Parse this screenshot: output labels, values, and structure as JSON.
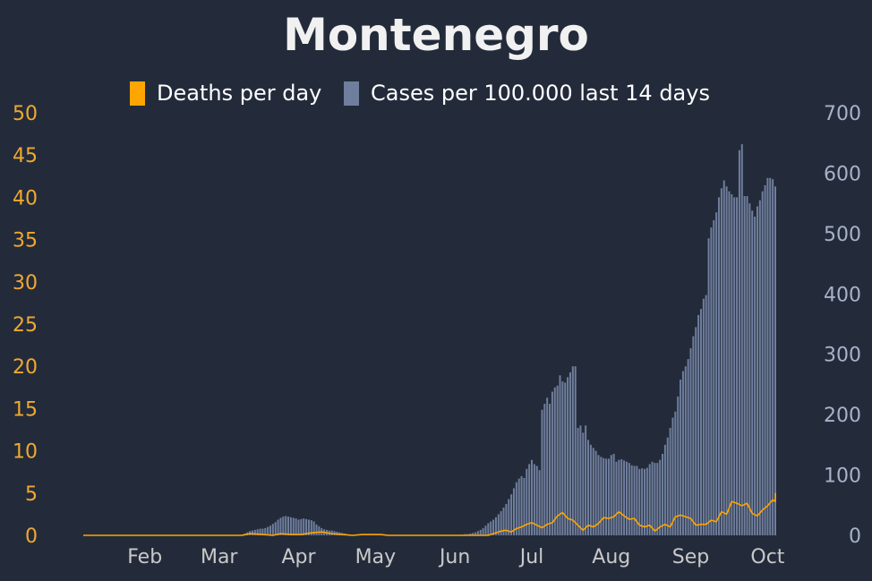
{
  "chart_data": {
    "type": "bar",
    "title": "Montenegro",
    "legend": {
      "placement": "top-center",
      "items": [
        {
          "label": "Deaths per day",
          "color": "#ffa500"
        },
        {
          "label": "Cases per 100.000 last 14 days",
          "color": "#6f7e9c"
        }
      ]
    },
    "x_ticks": [
      "Feb",
      "Mar",
      "Apr",
      "May",
      "Jun",
      "Jul",
      "Aug",
      "Sep",
      "Oct"
    ],
    "x_range": [
      "2020-01-22",
      "2020-10-18"
    ],
    "y_left": {
      "range": [
        0,
        50
      ],
      "ticks": [
        "0",
        "5",
        "10",
        "15",
        "20",
        "25",
        "30",
        "35",
        "40",
        "45",
        "50"
      ],
      "color": "#f0a830"
    },
    "y_right": {
      "range": [
        0,
        700
      ],
      "ticks": [
        "0",
        "100",
        "200",
        "300",
        "400",
        "500",
        "600",
        "700"
      ],
      "color": "#a7b2c7"
    },
    "grid": false,
    "series": [
      {
        "name": "Cases per 100.000 last 14 days",
        "axis": "right",
        "kind": "bar",
        "color": "#6f7e9c",
        "points": [
          [
            "2020-03-24",
            1
          ],
          [
            "2020-03-25",
            3
          ],
          [
            "2020-03-26",
            5
          ],
          [
            "2020-03-27",
            7
          ],
          [
            "2020-03-28",
            8
          ],
          [
            "2020-03-29",
            9
          ],
          [
            "2020-03-30",
            10
          ],
          [
            "2020-03-31",
            11
          ],
          [
            "2020-04-01",
            11
          ],
          [
            "2020-04-02",
            12
          ],
          [
            "2020-04-03",
            14
          ],
          [
            "2020-04-04",
            16
          ],
          [
            "2020-04-05",
            19
          ],
          [
            "2020-04-06",
            22
          ],
          [
            "2020-04-07",
            26
          ],
          [
            "2020-04-08",
            29
          ],
          [
            "2020-04-09",
            31
          ],
          [
            "2020-04-10",
            32
          ],
          [
            "2020-04-11",
            31
          ],
          [
            "2020-04-12",
            30
          ],
          [
            "2020-04-13",
            29
          ],
          [
            "2020-04-14",
            28
          ],
          [
            "2020-04-15",
            26
          ],
          [
            "2020-04-16",
            27
          ],
          [
            "2020-04-17",
            28
          ],
          [
            "2020-04-18",
            27
          ],
          [
            "2020-04-19",
            26
          ],
          [
            "2020-04-20",
            25
          ],
          [
            "2020-04-21",
            23
          ],
          [
            "2020-04-22",
            18
          ],
          [
            "2020-04-23",
            15
          ],
          [
            "2020-04-24",
            12
          ],
          [
            "2020-04-25",
            10
          ],
          [
            "2020-04-26",
            9
          ],
          [
            "2020-04-27",
            8
          ],
          [
            "2020-04-28",
            8
          ],
          [
            "2020-04-29",
            7
          ],
          [
            "2020-04-30",
            6
          ],
          [
            "2020-05-01",
            5
          ],
          [
            "2020-05-02",
            4
          ],
          [
            "2020-05-03",
            3
          ],
          [
            "2020-05-04",
            2
          ],
          [
            "2020-05-05",
            1
          ],
          [
            "2020-05-06",
            1
          ],
          [
            "2020-05-07",
            0.5
          ],
          [
            "2020-06-17",
            1
          ],
          [
            "2020-06-18",
            1
          ],
          [
            "2020-06-19",
            2
          ],
          [
            "2020-06-20",
            2
          ],
          [
            "2020-06-21",
            3
          ],
          [
            "2020-06-22",
            4
          ],
          [
            "2020-06-23",
            5
          ],
          [
            "2020-06-24",
            7
          ],
          [
            "2020-06-25",
            9
          ],
          [
            "2020-06-26",
            12
          ],
          [
            "2020-06-27",
            16
          ],
          [
            "2020-06-28",
            20
          ],
          [
            "2020-06-29",
            23
          ],
          [
            "2020-06-30",
            26
          ],
          [
            "2020-07-01",
            30
          ],
          [
            "2020-07-02",
            35
          ],
          [
            "2020-07-03",
            40
          ],
          [
            "2020-07-04",
            46
          ],
          [
            "2020-07-05",
            52
          ],
          [
            "2020-07-06",
            60
          ],
          [
            "2020-07-07",
            68
          ],
          [
            "2020-07-08",
            78
          ],
          [
            "2020-07-09",
            88
          ],
          [
            "2020-07-10",
            94
          ],
          [
            "2020-07-11",
            98
          ],
          [
            "2020-07-12",
            95
          ],
          [
            "2020-07-13",
            110
          ],
          [
            "2020-07-14",
            118
          ],
          [
            "2020-07-15",
            125
          ],
          [
            "2020-07-16",
            118
          ],
          [
            "2020-07-17",
            115
          ],
          [
            "2020-07-18",
            108
          ],
          [
            "2020-07-19",
            208
          ],
          [
            "2020-07-20",
            218
          ],
          [
            "2020-07-21",
            228
          ],
          [
            "2020-07-22",
            218
          ],
          [
            "2020-07-23",
            238
          ],
          [
            "2020-07-24",
            245
          ],
          [
            "2020-07-25",
            248
          ],
          [
            "2020-07-26",
            265
          ],
          [
            "2020-07-27",
            255
          ],
          [
            "2020-07-28",
            253
          ],
          [
            "2020-07-29",
            262
          ],
          [
            "2020-07-30",
            270
          ],
          [
            "2020-07-31",
            280
          ],
          [
            "2020-08-01",
            280
          ],
          [
            "2020-08-02",
            178
          ],
          [
            "2020-08-03",
            182
          ],
          [
            "2020-08-04",
            170
          ],
          [
            "2020-08-05",
            182
          ],
          [
            "2020-08-06",
            158
          ],
          [
            "2020-08-07",
            150
          ],
          [
            "2020-08-08",
            145
          ],
          [
            "2020-08-09",
            140
          ],
          [
            "2020-08-10",
            133
          ],
          [
            "2020-08-11",
            130
          ],
          [
            "2020-08-12",
            128
          ],
          [
            "2020-08-13",
            127
          ],
          [
            "2020-08-14",
            127
          ],
          [
            "2020-08-15",
            133
          ],
          [
            "2020-08-16",
            135
          ],
          [
            "2020-08-17",
            122
          ],
          [
            "2020-08-18",
            125
          ],
          [
            "2020-08-19",
            126
          ],
          [
            "2020-08-20",
            124
          ],
          [
            "2020-08-21",
            122
          ],
          [
            "2020-08-22",
            120
          ],
          [
            "2020-08-23",
            116
          ],
          [
            "2020-08-24",
            115
          ],
          [
            "2020-08-25",
            115
          ],
          [
            "2020-08-26",
            110
          ],
          [
            "2020-08-27",
            111
          ],
          [
            "2020-08-28",
            110
          ],
          [
            "2020-08-29",
            112
          ],
          [
            "2020-08-30",
            118
          ],
          [
            "2020-08-31",
            122
          ],
          [
            "2020-09-01",
            120
          ],
          [
            "2020-09-02",
            120
          ],
          [
            "2020-09-03",
            125
          ],
          [
            "2020-09-04",
            135
          ],
          [
            "2020-09-05",
            150
          ],
          [
            "2020-09-06",
            162
          ],
          [
            "2020-09-07",
            178
          ],
          [
            "2020-09-08",
            195
          ],
          [
            "2020-09-09",
            205
          ],
          [
            "2020-09-10",
            230
          ],
          [
            "2020-09-11",
            258
          ],
          [
            "2020-09-12",
            272
          ],
          [
            "2020-09-13",
            280
          ],
          [
            "2020-09-14",
            292
          ],
          [
            "2020-09-15",
            310
          ],
          [
            "2020-09-16",
            330
          ],
          [
            "2020-09-17",
            345
          ],
          [
            "2020-09-18",
            365
          ],
          [
            "2020-09-19",
            375
          ],
          [
            "2020-09-20",
            392
          ],
          [
            "2020-09-21",
            398
          ],
          [
            "2020-09-22",
            492
          ],
          [
            "2020-09-23",
            510
          ],
          [
            "2020-09-24",
            522
          ],
          [
            "2020-09-25",
            535
          ],
          [
            "2020-09-26",
            560
          ],
          [
            "2020-09-27",
            575
          ],
          [
            "2020-09-28",
            588
          ],
          [
            "2020-09-29",
            578
          ],
          [
            "2020-09-30",
            570
          ],
          [
            "2020-10-01",
            565
          ],
          [
            "2020-10-02",
            560
          ],
          [
            "2020-10-03",
            560
          ],
          [
            "2020-10-04",
            638
          ],
          [
            "2020-10-05",
            648
          ],
          [
            "2020-10-06",
            562
          ],
          [
            "2020-10-07",
            562
          ],
          [
            "2020-10-08",
            550
          ],
          [
            "2020-10-09",
            538
          ],
          [
            "2020-10-10",
            528
          ],
          [
            "2020-10-11",
            545
          ],
          [
            "2020-10-12",
            555
          ],
          [
            "2020-10-13",
            570
          ],
          [
            "2020-10-14",
            580
          ],
          [
            "2020-10-15",
            592
          ],
          [
            "2020-10-16",
            592
          ],
          [
            "2020-10-17",
            590
          ],
          [
            "2020-10-18",
            578
          ]
        ]
      },
      {
        "name": "Deaths per day",
        "axis": "left",
        "kind": "line",
        "color": "#ffa500",
        "points": [
          [
            "2020-01-22",
            0
          ],
          [
            "2020-03-24",
            0
          ],
          [
            "2020-03-27",
            0.2
          ],
          [
            "2020-04-01",
            0.1
          ],
          [
            "2020-04-05",
            0
          ],
          [
            "2020-04-08",
            0.2
          ],
          [
            "2020-04-12",
            0.1
          ],
          [
            "2020-04-16",
            0.1
          ],
          [
            "2020-04-20",
            0.3
          ],
          [
            "2020-04-24",
            0.4
          ],
          [
            "2020-04-28",
            0.2
          ],
          [
            "2020-05-02",
            0.1
          ],
          [
            "2020-05-06",
            0
          ],
          [
            "2020-05-10",
            0.1
          ],
          [
            "2020-05-17",
            0.1
          ],
          [
            "2020-05-20",
            0
          ],
          [
            "2020-06-20",
            0
          ],
          [
            "2020-06-28",
            0
          ],
          [
            "2020-07-01",
            0.3
          ],
          [
            "2020-07-03",
            0.5
          ],
          [
            "2020-07-05",
            0.6
          ],
          [
            "2020-07-07",
            0.4
          ],
          [
            "2020-07-09",
            0.8
          ],
          [
            "2020-07-11",
            1.0
          ],
          [
            "2020-07-13",
            1.3
          ],
          [
            "2020-07-15",
            1.5
          ],
          [
            "2020-07-17",
            1.2
          ],
          [
            "2020-07-19",
            0.9
          ],
          [
            "2020-07-21",
            1.3
          ],
          [
            "2020-07-23",
            1.5
          ],
          [
            "2020-07-25",
            2.3
          ],
          [
            "2020-07-27",
            2.7
          ],
          [
            "2020-07-29",
            2.0
          ],
          [
            "2020-07-31",
            1.8
          ],
          [
            "2020-08-02",
            1.2
          ],
          [
            "2020-08-04",
            0.6
          ],
          [
            "2020-08-06",
            1.2
          ],
          [
            "2020-08-08",
            1.0
          ],
          [
            "2020-08-10",
            1.4
          ],
          [
            "2020-08-12",
            2.1
          ],
          [
            "2020-08-14",
            2.0
          ],
          [
            "2020-08-16",
            2.2
          ],
          [
            "2020-08-18",
            2.8
          ],
          [
            "2020-08-20",
            2.3
          ],
          [
            "2020-08-22",
            1.9
          ],
          [
            "2020-08-24",
            2.0
          ],
          [
            "2020-08-26",
            1.2
          ],
          [
            "2020-08-28",
            1.0
          ],
          [
            "2020-08-30",
            1.2
          ],
          [
            "2020-09-01",
            0.5
          ],
          [
            "2020-09-03",
            1.0
          ],
          [
            "2020-09-05",
            1.3
          ],
          [
            "2020-09-07",
            1.0
          ],
          [
            "2020-09-09",
            2.2
          ],
          [
            "2020-09-11",
            2.4
          ],
          [
            "2020-09-13",
            2.2
          ],
          [
            "2020-09-15",
            2.0
          ],
          [
            "2020-09-17",
            1.2
          ],
          [
            "2020-09-19",
            1.3
          ],
          [
            "2020-09-21",
            1.3
          ],
          [
            "2020-09-23",
            1.8
          ],
          [
            "2020-09-25",
            1.6
          ],
          [
            "2020-09-27",
            2.8
          ],
          [
            "2020-09-29",
            2.5
          ],
          [
            "2020-10-01",
            4.0
          ],
          [
            "2020-10-03",
            3.8
          ],
          [
            "2020-10-05",
            3.5
          ],
          [
            "2020-10-07",
            3.8
          ],
          [
            "2020-10-09",
            2.6
          ],
          [
            "2020-10-11",
            2.3
          ],
          [
            "2020-10-13",
            3.0
          ],
          [
            "2020-10-15",
            3.5
          ],
          [
            "2020-10-17",
            4.2
          ],
          [
            "2020-10-18",
            4.0
          ],
          [
            "2020-10-19",
            4.8
          ],
          [
            "2020-10-20",
            5.0
          ]
        ]
      }
    ]
  }
}
